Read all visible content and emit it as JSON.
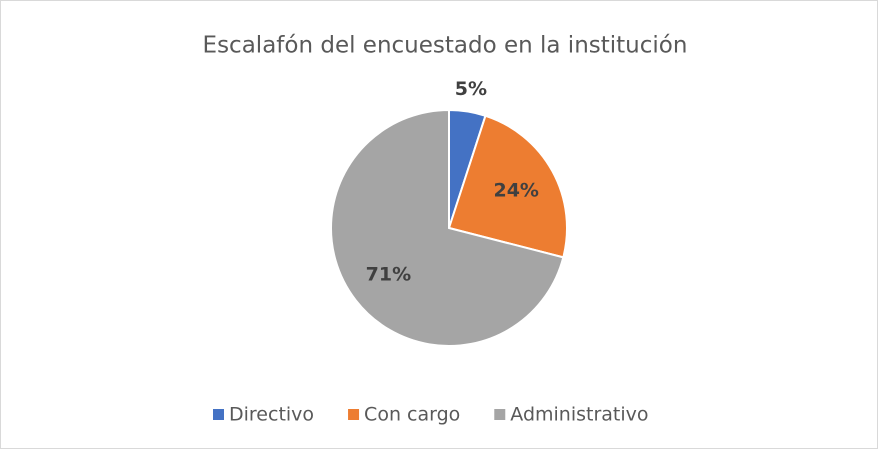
{
  "chart_data": {
    "type": "pie",
    "title": "Escalafón del encuestado en la institución",
    "categories": [
      "Directivo",
      "Con cargo",
      "Administrativo"
    ],
    "values": [
      5,
      24,
      71
    ],
    "value_labels": [
      "5%",
      "24%",
      "71%"
    ],
    "colors": [
      "#4472c4",
      "#ed7d31",
      "#a5a5a5"
    ],
    "legend": "bottom"
  }
}
